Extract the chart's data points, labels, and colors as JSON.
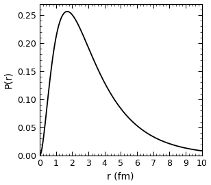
{
  "title": "",
  "xlabel": "r (fm)",
  "ylabel": "P(r)",
  "xlim": [
    0,
    10
  ],
  "ylim": [
    0,
    0.27
  ],
  "alpha": 0.2317,
  "beta": 1.202,
  "r_min": 0.001,
  "r_max": 10.0,
  "n_points": 3000,
  "line_color": "#000000",
  "line_width": 1.3,
  "bg_color": "#ffffff",
  "xticks": [
    0,
    1,
    2,
    3,
    4,
    5,
    6,
    7,
    8,
    9,
    10
  ],
  "yticks": [
    0,
    0.05,
    0.1,
    0.15,
    0.2,
    0.25
  ],
  "minor_xticks_per_major": 5,
  "minor_yticks_per_major": 5,
  "tick_direction": "in",
  "xlabel_fontsize": 10,
  "ylabel_fontsize": 10,
  "tick_labelsize": 9
}
